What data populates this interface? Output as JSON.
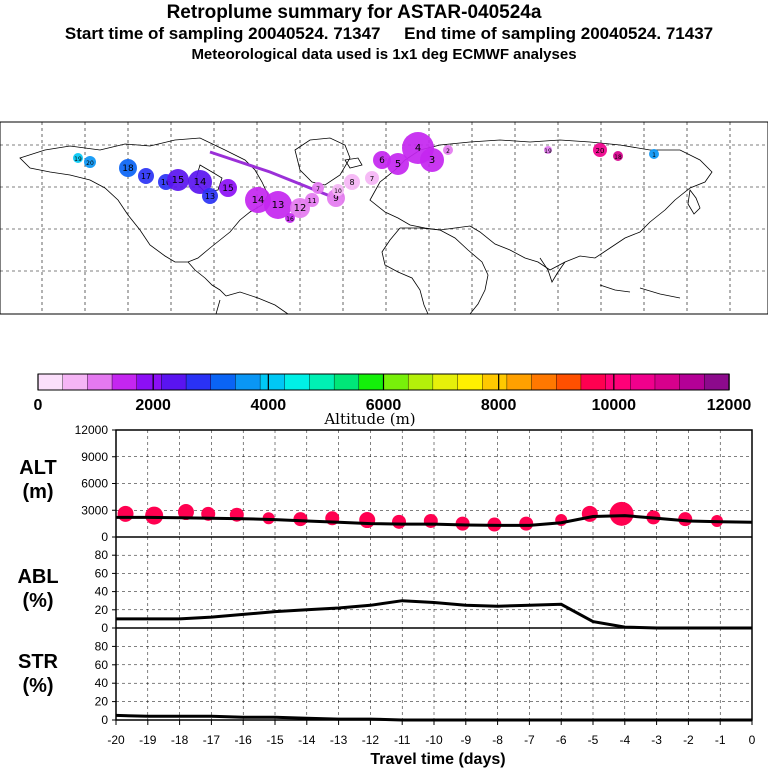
{
  "header": {
    "title": "Retroplume summary for ASTAR-040524a",
    "start_time": "Start time of sampling 20040524. 71347",
    "end_time": "End time of sampling 20040524. 71437",
    "met_data": "Meteorological data used is 1x1 deg ECMWF analyses"
  },
  "colorbar": {
    "label": "Altitude (m)",
    "ticks": [
      "0",
      "2000",
      "4000",
      "6000",
      "8000",
      "10000",
      "12000"
    ],
    "range": [
      0,
      12000
    ],
    "colors": [
      "#fbdffb",
      "#f5b5f5",
      "#e479f0",
      "#c426f0",
      "#8c0ff5",
      "#5a14f0",
      "#2a32f5",
      "#0a64f5",
      "#0a96f5",
      "#00c8f5",
      "#00f0e6",
      "#00f0b4",
      "#00e678",
      "#14f00a",
      "#78f00a",
      "#b4f00a",
      "#e6f00a",
      "#fff000",
      "#ffc800",
      "#ffa000",
      "#ff7800",
      "#ff5000",
      "#ff0050",
      "#ff0078",
      "#f0008c",
      "#d7008c",
      "#b40096",
      "#8c0a8c"
    ]
  },
  "map": {
    "particle_labels": [
      "19",
      "20",
      "18",
      "17",
      "16",
      "15",
      "14",
      "13",
      "12",
      "11",
      "10",
      "9",
      "8",
      "7",
      "6",
      "5",
      "4",
      "3",
      "2",
      "1"
    ]
  },
  "panels": {
    "alt": {
      "label_top": "ALT",
      "label_bottom": "(m)",
      "ticks": [
        "0",
        "3000",
        "6000",
        "9000",
        "12000"
      ]
    },
    "abl": {
      "label_top": "ABL",
      "label_bottom": "(%)",
      "ticks": [
        "0",
        "20",
        "40",
        "60",
        "80"
      ]
    },
    "str": {
      "label_top": "STR",
      "label_bottom": "(%)",
      "ticks": [
        "0",
        "20",
        "40",
        "60",
        "80"
      ]
    },
    "x_ticks": [
      "-20",
      "-19",
      "-18",
      "-17",
      "-16",
      "-15",
      "-14",
      "-13",
      "-12",
      "-11",
      "-10",
      "-9",
      "-8",
      "-7",
      "-6",
      "-5",
      "-4",
      "-3",
      "-2",
      "-1",
      "0"
    ],
    "x_label": "Travel time (days)"
  },
  "chart_data": {
    "type": "line",
    "title": "Retroplume summary for ASTAR-040524a",
    "xlabel": "Travel time (days)",
    "x": [
      -20,
      -19,
      -18,
      -17,
      -16,
      -15,
      -14,
      -13,
      -12,
      -11,
      -10,
      -9,
      -8,
      -7,
      -6,
      -5,
      -4,
      -3,
      -2,
      -1,
      0
    ],
    "series": [
      {
        "name": "ALT (m)",
        "ylim": [
          0,
          12000
        ],
        "values": [
          2200,
          2200,
          2150,
          2100,
          2050,
          1950,
          1800,
          1650,
          1500,
          1450,
          1450,
          1350,
          1300,
          1300,
          1600,
          2300,
          2400,
          2100,
          1800,
          1700,
          1650
        ]
      },
      {
        "name": "ABL (%)",
        "ylim": [
          0,
          100
        ],
        "values": [
          10,
          10,
          10,
          12,
          15,
          18,
          20,
          22,
          25,
          30,
          28,
          25,
          24,
          25,
          26,
          7,
          1,
          0,
          0,
          0,
          0
        ]
      },
      {
        "name": "STR (%)",
        "ylim": [
          0,
          100
        ],
        "values": [
          5,
          4,
          4,
          4,
          3,
          3,
          2,
          1,
          1,
          0,
          0,
          0,
          0,
          0,
          0,
          0,
          0,
          0,
          0,
          0,
          0
        ]
      }
    ],
    "alt_markers": [
      {
        "x": -19.7,
        "alt": 2600,
        "r": 8
      },
      {
        "x": -18.8,
        "alt": 2400,
        "r": 9
      },
      {
        "x": -17.8,
        "alt": 2800,
        "r": 8
      },
      {
        "x": -17.1,
        "alt": 2600,
        "r": 7
      },
      {
        "x": -16.2,
        "alt": 2500,
        "r": 7
      },
      {
        "x": -15.2,
        "alt": 2100,
        "r": 6
      },
      {
        "x": -14.2,
        "alt": 2000,
        "r": 7
      },
      {
        "x": -13.2,
        "alt": 2100,
        "r": 7
      },
      {
        "x": -12.1,
        "alt": 1900,
        "r": 8
      },
      {
        "x": -11.1,
        "alt": 1700,
        "r": 7
      },
      {
        "x": -10.1,
        "alt": 1800,
        "r": 7
      },
      {
        "x": -9.1,
        "alt": 1500,
        "r": 7
      },
      {
        "x": -8.1,
        "alt": 1400,
        "r": 7
      },
      {
        "x": -7.1,
        "alt": 1500,
        "r": 7
      },
      {
        "x": -6.0,
        "alt": 1900,
        "r": 6
      },
      {
        "x": -5.1,
        "alt": 2600,
        "r": 8
      },
      {
        "x": -4.1,
        "alt": 2600,
        "r": 12
      },
      {
        "x": -3.1,
        "alt": 2200,
        "r": 7
      },
      {
        "x": -2.1,
        "alt": 2000,
        "r": 7
      },
      {
        "x": -1.1,
        "alt": 1800,
        "r": 6
      }
    ],
    "alt_marker_color": "#ff0050"
  }
}
